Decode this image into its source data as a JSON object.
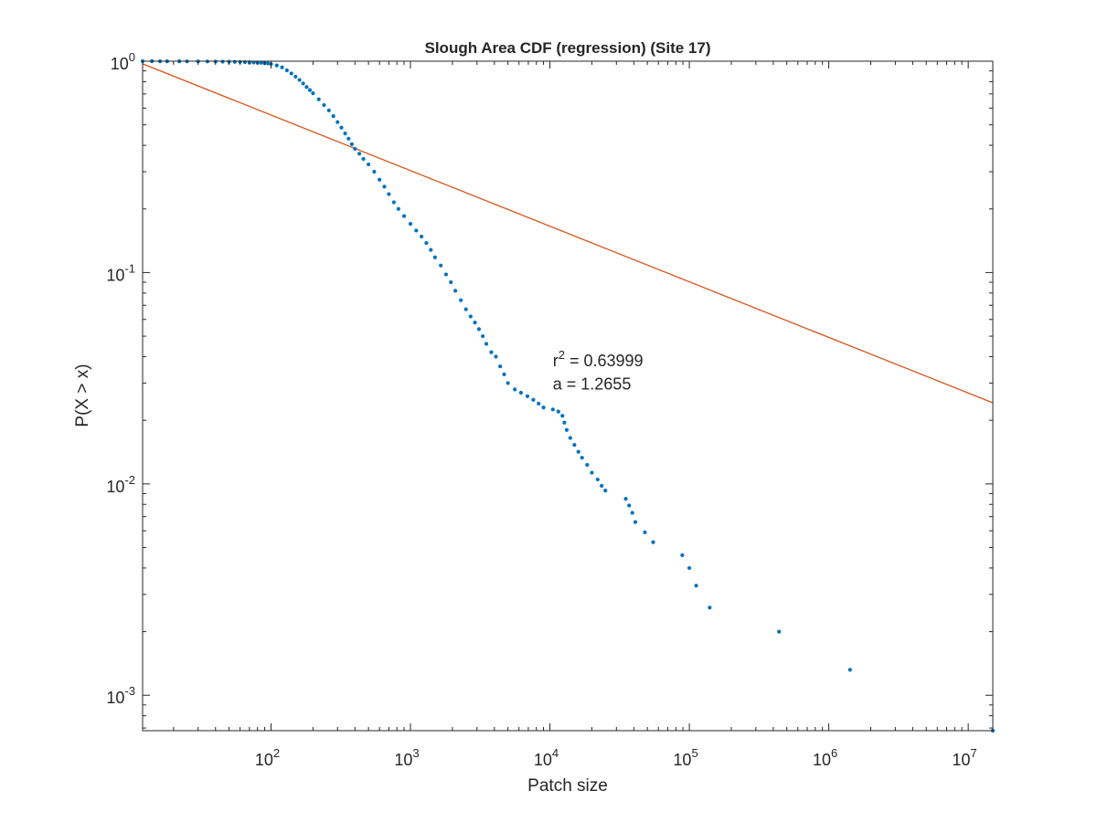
{
  "chart_data": {
    "type": "scatter",
    "title": "Slough Area CDF (regression) (Site 17)",
    "xlabel": "Patch size",
    "ylabel": "P(X > x)",
    "xscale": "log",
    "yscale": "log",
    "xlim": [
      12,
      15000000
    ],
    "ylim": [
      0.00068,
      1
    ],
    "x_ticks": [
      {
        "value": 100,
        "base": "10",
        "exp": "2"
      },
      {
        "value": 1000,
        "base": "10",
        "exp": "3"
      },
      {
        "value": 10000,
        "base": "10",
        "exp": "4"
      },
      {
        "value": 100000,
        "base": "10",
        "exp": "5"
      },
      {
        "value": 1000000,
        "base": "10",
        "exp": "6"
      },
      {
        "value": 10000000,
        "base": "10",
        "exp": "7"
      }
    ],
    "y_ticks": [
      {
        "value": 1,
        "base": "10",
        "exp": "0"
      },
      {
        "value": 0.1,
        "base": "10",
        "exp": "-1"
      },
      {
        "value": 0.01,
        "base": "10",
        "exp": "-2"
      },
      {
        "value": 0.001,
        "base": "10",
        "exp": "-3"
      }
    ],
    "grid": false,
    "box": true,
    "series": [
      {
        "kind": "scatter",
        "color": "#0072BD",
        "points": [
          [
            12,
            1.0
          ],
          [
            14,
            1.0
          ],
          [
            16,
            0.999
          ],
          [
            18,
            0.999
          ],
          [
            22,
            0.999
          ],
          [
            25,
            0.998
          ],
          [
            30,
            0.998
          ],
          [
            35,
            0.997
          ],
          [
            40,
            0.996
          ],
          [
            45,
            0.995
          ],
          [
            50,
            0.994
          ],
          [
            55,
            0.993
          ],
          [
            60,
            0.992
          ],
          [
            65,
            0.99
          ],
          [
            70,
            0.988
          ],
          [
            75,
            0.986
          ],
          [
            80,
            0.984
          ],
          [
            85,
            0.982
          ],
          [
            90,
            0.979
          ],
          [
            95,
            0.976
          ],
          [
            100,
            0.97
          ],
          [
            110,
            0.955
          ],
          [
            120,
            0.935
          ],
          [
            130,
            0.905
          ],
          [
            140,
            0.875
          ],
          [
            150,
            0.845
          ],
          [
            160,
            0.815
          ],
          [
            170,
            0.785
          ],
          [
            180,
            0.755
          ],
          [
            190,
            0.73
          ],
          [
            200,
            0.705
          ],
          [
            220,
            0.66
          ],
          [
            240,
            0.62
          ],
          [
            260,
            0.585
          ],
          [
            280,
            0.55
          ],
          [
            300,
            0.515
          ],
          [
            320,
            0.485
          ],
          [
            340,
            0.455
          ],
          [
            360,
            0.43
          ],
          [
            380,
            0.405
          ],
          [
            400,
            0.385
          ],
          [
            430,
            0.365
          ],
          [
            460,
            0.345
          ],
          [
            500,
            0.325
          ],
          [
            550,
            0.3
          ],
          [
            600,
            0.275
          ],
          [
            650,
            0.255
          ],
          [
            700,
            0.235
          ],
          [
            760,
            0.215
          ],
          [
            820,
            0.2
          ],
          [
            900,
            0.185
          ],
          [
            1000,
            0.17
          ],
          [
            1100,
            0.158
          ],
          [
            1200,
            0.148
          ],
          [
            1300,
            0.138
          ],
          [
            1400,
            0.128
          ],
          [
            1500,
            0.118
          ],
          [
            1650,
            0.108
          ],
          [
            1800,
            0.098
          ],
          [
            1950,
            0.09
          ],
          [
            2100,
            0.082
          ],
          [
            2300,
            0.074
          ],
          [
            2500,
            0.067
          ],
          [
            2700,
            0.062
          ],
          [
            2900,
            0.058
          ],
          [
            3100,
            0.054
          ],
          [
            3300,
            0.05
          ],
          [
            3500,
            0.046
          ],
          [
            3800,
            0.042
          ],
          [
            4100,
            0.04
          ],
          [
            4400,
            0.036
          ],
          [
            4700,
            0.033
          ],
          [
            5000,
            0.03
          ],
          [
            5600,
            0.028
          ],
          [
            6200,
            0.027
          ],
          [
            6900,
            0.026
          ],
          [
            7600,
            0.025
          ],
          [
            8300,
            0.024
          ],
          [
            9000,
            0.023
          ],
          [
            10500,
            0.0225
          ],
          [
            11500,
            0.022
          ],
          [
            12300,
            0.021
          ],
          [
            12700,
            0.0195
          ],
          [
            13200,
            0.018
          ],
          [
            14000,
            0.0165
          ],
          [
            15000,
            0.0153
          ],
          [
            16000,
            0.0142
          ],
          [
            17000,
            0.0133
          ],
          [
            18500,
            0.0123
          ],
          [
            20000,
            0.0113
          ],
          [
            22000,
            0.0105
          ],
          [
            23500,
            0.0098
          ],
          [
            25000,
            0.0093
          ],
          [
            35000,
            0.0085
          ],
          [
            37000,
            0.0079
          ],
          [
            39000,
            0.0073
          ],
          [
            41000,
            0.0066
          ],
          [
            48000,
            0.0059
          ],
          [
            55000,
            0.0053
          ],
          [
            89000,
            0.0046
          ],
          [
            100000,
            0.004
          ],
          [
            112000,
            0.0033
          ],
          [
            140000,
            0.0026
          ],
          [
            440000,
            0.002
          ],
          [
            1420000,
            0.00132
          ],
          [
            15000000,
            0.00068
          ]
        ]
      },
      {
        "kind": "line",
        "color": "#D95319",
        "points": [
          [
            12,
            0.972
          ],
          [
            15000000,
            0.0242
          ]
        ]
      }
    ],
    "annotations": [
      {
        "id": "r2",
        "prefix": "r",
        "sup": "2",
        "text": " = 0.63999",
        "x": 10500,
        "y": 0.036
      },
      {
        "id": "a",
        "text": "a = 1.2655",
        "x": 10500,
        "y": 0.028
      }
    ]
  }
}
